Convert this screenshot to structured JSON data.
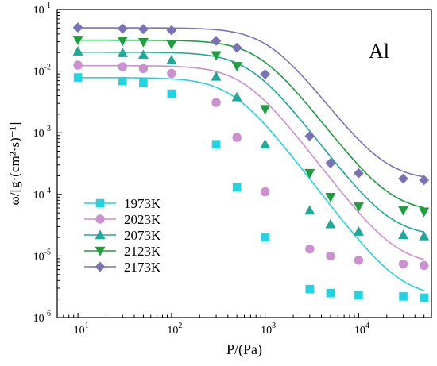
{
  "chart_data": {
    "type": "line",
    "title": "",
    "panel_label": "Al",
    "xlabel": "P/(Pa)",
    "ylabel": "ω/[g·(cm²·s)⁻¹]",
    "x_scale": "log",
    "y_scale": "log",
    "xlim": [
      6,
      60000
    ],
    "ylim": [
      1e-06,
      0.1
    ],
    "x_ticks": [
      {
        "value": 10,
        "base": "10",
        "exp": "1"
      },
      {
        "value": 100,
        "base": "10",
        "exp": "2"
      },
      {
        "value": 1000,
        "base": "10",
        "exp": "3"
      },
      {
        "value": 10000,
        "base": "10",
        "exp": "4"
      }
    ],
    "y_ticks": [
      {
        "value": 1e-06,
        "base": "10",
        "exp": "-6"
      },
      {
        "value": 1e-05,
        "base": "10",
        "exp": "-5"
      },
      {
        "value": 0.0001,
        "base": "10",
        "exp": "-4"
      },
      {
        "value": 0.001,
        "base": "10",
        "exp": "-3"
      },
      {
        "value": 0.01,
        "base": "10",
        "exp": "-2"
      },
      {
        "value": 0.1,
        "base": "10",
        "exp": "-1"
      }
    ],
    "legend_position": "lower-left",
    "grid": false,
    "x": [
      10,
      30,
      50,
      100,
      300,
      500,
      1000,
      3000,
      5000,
      10000,
      30000,
      50000
    ],
    "series": [
      {
        "name": "1973K",
        "marker": "square",
        "color": "#22d3e0",
        "fit": {
          "a": 2.1e-06,
          "b": 0.00785,
          "p0": 455,
          "n": 2.0
        },
        "values": [
          0.0079,
          0.0069,
          0.0064,
          0.0043,
          0.00065,
          0.00013,
          2e-05,
          2.9e-06,
          2.5e-06,
          2.3e-06,
          2.2e-06,
          2.1e-06
        ]
      },
      {
        "name": "2023K",
        "marker": "circle",
        "color": "#cc8fcf",
        "fit": {
          "a": 7e-06,
          "b": 0.0123,
          "p0": 600,
          "n": 2.0
        },
        "values": [
          0.0125,
          0.0118,
          0.011,
          0.0092,
          0.0031,
          0.00084,
          0.00011,
          1.3e-05,
          1e-05,
          8.5e-06,
          7.4e-06,
          7e-06
        ]
      },
      {
        "name": "2073K",
        "marker": "triangle-up",
        "color": "#1fa99a",
        "fit": {
          "a": 2.05e-05,
          "b": 0.0203,
          "p0": 700,
          "n": 2.0
        },
        "values": [
          0.021,
          0.0198,
          0.0185,
          0.0152,
          0.0082,
          0.0038,
          0.00065,
          5.5e-05,
          3.3e-05,
          2.5e-05,
          2.2e-05,
          2.1e-05
        ]
      },
      {
        "name": "2123K",
        "marker": "triangle-down",
        "color": "#1e9e3e",
        "fit": {
          "a": 5.1e-05,
          "b": 0.0318,
          "p0": 880,
          "n": 2.0
        },
        "values": [
          0.032,
          0.031,
          0.0295,
          0.0272,
          0.018,
          0.012,
          0.0024,
          0.00022,
          9e-05,
          6.3e-05,
          5.5e-05,
          5.2e-05
        ]
      },
      {
        "name": "2173K",
        "marker": "diamond",
        "color": "#7a72b8",
        "fit": {
          "a": 0.000168,
          "b": 0.0505,
          "p0": 1100,
          "n": 2.0
        },
        "values": [
          0.051,
          0.049,
          0.048,
          0.046,
          0.031,
          0.024,
          0.0089,
          0.00088,
          0.00032,
          0.00022,
          0.00018,
          0.00017
        ]
      }
    ]
  }
}
